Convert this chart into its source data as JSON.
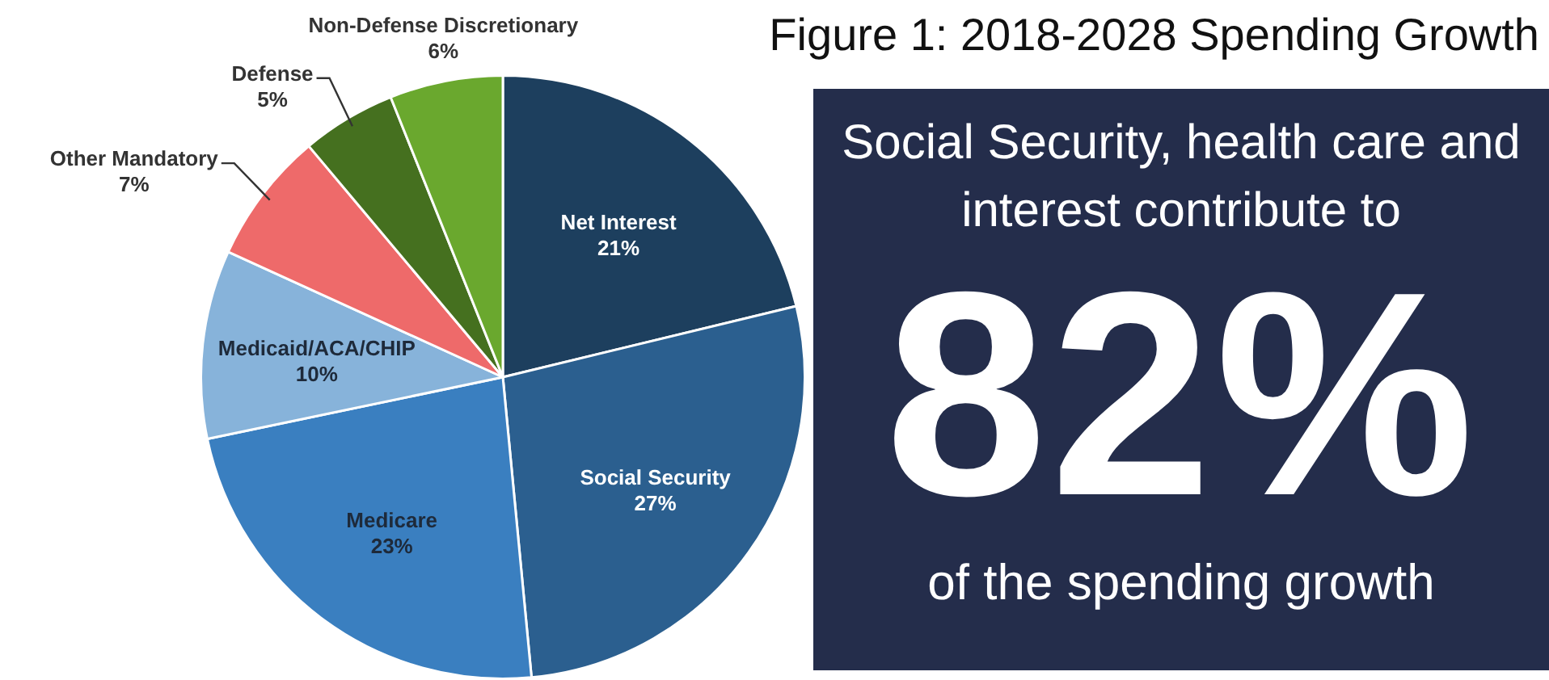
{
  "chart_data": [
    {
      "type": "pie",
      "title": "Figure 1: 2018-2028 Spending Growth",
      "categories": [
        "Net Interest",
        "Social Security",
        "Medicare",
        "Medicaid/ACA/CHIP",
        "Other Mandatory",
        "Defense",
        "Non-Defense Discretionary"
      ],
      "values": [
        21,
        27,
        23,
        10,
        7,
        5,
        6
      ],
      "value_labels": [
        "21%",
        "27%",
        "23%",
        "10%",
        "7%",
        "5%",
        "6%"
      ],
      "colors": [
        "#1d3f5e",
        "#2b5f8f",
        "#3a7fc0",
        "#87b3da",
        "#ee6a6a",
        "#45701f",
        "#6aa82e"
      ]
    },
    {
      "type": "other",
      "annotations": [
        "Social Security, health care and interest contribute to",
        "82%",
        "of the spending growth"
      ]
    }
  ]
}
